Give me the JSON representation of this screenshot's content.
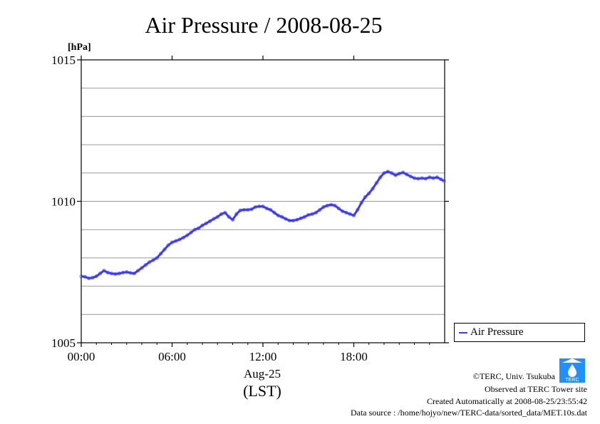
{
  "chart_data": {
    "type": "line",
    "title": "Air Pressure / 2008-08-25",
    "ylabel": "[hPa]",
    "xlabel": "Aug-25",
    "xlabel2": "(LST)",
    "xlim": [
      0,
      24
    ],
    "ylim": [
      1005,
      1015
    ],
    "x_ticks": [
      {
        "value": 0,
        "label": "00:00"
      },
      {
        "value": 6,
        "label": "06:00"
      },
      {
        "value": 12,
        "label": "12:00"
      },
      {
        "value": 18,
        "label": "18:00"
      }
    ],
    "y_ticks": [
      {
        "value": 1005,
        "label": "1005"
      },
      {
        "value": 1010,
        "label": "1010"
      },
      {
        "value": 1015,
        "label": "1015"
      }
    ],
    "y_gridlines": [
      1006,
      1007,
      1008,
      1009,
      1010,
      1011,
      1012,
      1013,
      1014
    ],
    "grid": true,
    "legend": {
      "position": "right",
      "entries": [
        "Air Pressure"
      ]
    },
    "series": [
      {
        "name": "Air Pressure",
        "color": "#3a3aff",
        "x": [
          0,
          0.25,
          0.5,
          0.75,
          1.0,
          1.25,
          1.5,
          1.75,
          2.0,
          2.25,
          2.5,
          2.75,
          3.0,
          3.25,
          3.5,
          3.75,
          4.0,
          4.25,
          4.5,
          4.75,
          5.0,
          5.25,
          5.5,
          5.75,
          6.0,
          6.25,
          6.5,
          6.75,
          7.0,
          7.25,
          7.5,
          7.75,
          8.0,
          8.25,
          8.5,
          8.75,
          9.0,
          9.25,
          9.5,
          9.75,
          10.0,
          10.25,
          10.5,
          10.75,
          11.0,
          11.25,
          11.5,
          11.75,
          12.0,
          12.25,
          12.5,
          12.75,
          13.0,
          13.25,
          13.5,
          13.75,
          14.0,
          14.25,
          14.5,
          14.75,
          15.0,
          15.25,
          15.5,
          15.75,
          16.0,
          16.25,
          16.5,
          16.75,
          17.0,
          17.25,
          17.5,
          17.75,
          18.0,
          18.25,
          18.5,
          18.75,
          19.0,
          19.25,
          19.5,
          19.75,
          20.0,
          20.25,
          20.5,
          20.75,
          21.0,
          21.25,
          21.5,
          21.75,
          22.0,
          22.25,
          22.5,
          22.75,
          23.0,
          23.25,
          23.5,
          23.75,
          23.95
        ],
        "values": [
          1007.35,
          1007.33,
          1007.28,
          1007.3,
          1007.35,
          1007.45,
          1007.55,
          1007.48,
          1007.45,
          1007.43,
          1007.45,
          1007.48,
          1007.5,
          1007.47,
          1007.45,
          1007.55,
          1007.65,
          1007.75,
          1007.85,
          1007.92,
          1008.0,
          1008.15,
          1008.3,
          1008.45,
          1008.55,
          1008.6,
          1008.65,
          1008.72,
          1008.8,
          1008.9,
          1009.0,
          1009.05,
          1009.15,
          1009.22,
          1009.3,
          1009.38,
          1009.45,
          1009.55,
          1009.6,
          1009.45,
          1009.35,
          1009.55,
          1009.68,
          1009.7,
          1009.7,
          1009.72,
          1009.8,
          1009.82,
          1009.82,
          1009.75,
          1009.7,
          1009.6,
          1009.5,
          1009.45,
          1009.38,
          1009.32,
          1009.32,
          1009.35,
          1009.4,
          1009.45,
          1009.52,
          1009.55,
          1009.6,
          1009.7,
          1009.8,
          1009.85,
          1009.88,
          1009.85,
          1009.75,
          1009.65,
          1009.6,
          1009.55,
          1009.5,
          1009.7,
          1009.95,
          1010.15,
          1010.28,
          1010.45,
          1010.65,
          1010.85,
          1011.0,
          1011.05,
          1011.0,
          1010.92,
          1010.98,
          1011.02,
          1010.95,
          1010.88,
          1010.82,
          1010.8,
          1010.82,
          1010.8,
          1010.85,
          1010.82,
          1010.85,
          1010.78,
          1010.72
        ]
      }
    ]
  },
  "legend_label": "Air Pressure",
  "footer": {
    "copyright": "©TERC, Univ. Tsukuba",
    "observed": "Observed at TERC Tower site",
    "created": "Created Automatically at 2008-08-25/23:55:42",
    "source": "Data source : /home/hojyo/new/TERC-data/sorted_data/MET.10s.dat",
    "logo_text": "TERC"
  },
  "colors": {
    "series": "#3a3aff",
    "grid": "#9a9a9a",
    "logo": "#1e90ff"
  }
}
